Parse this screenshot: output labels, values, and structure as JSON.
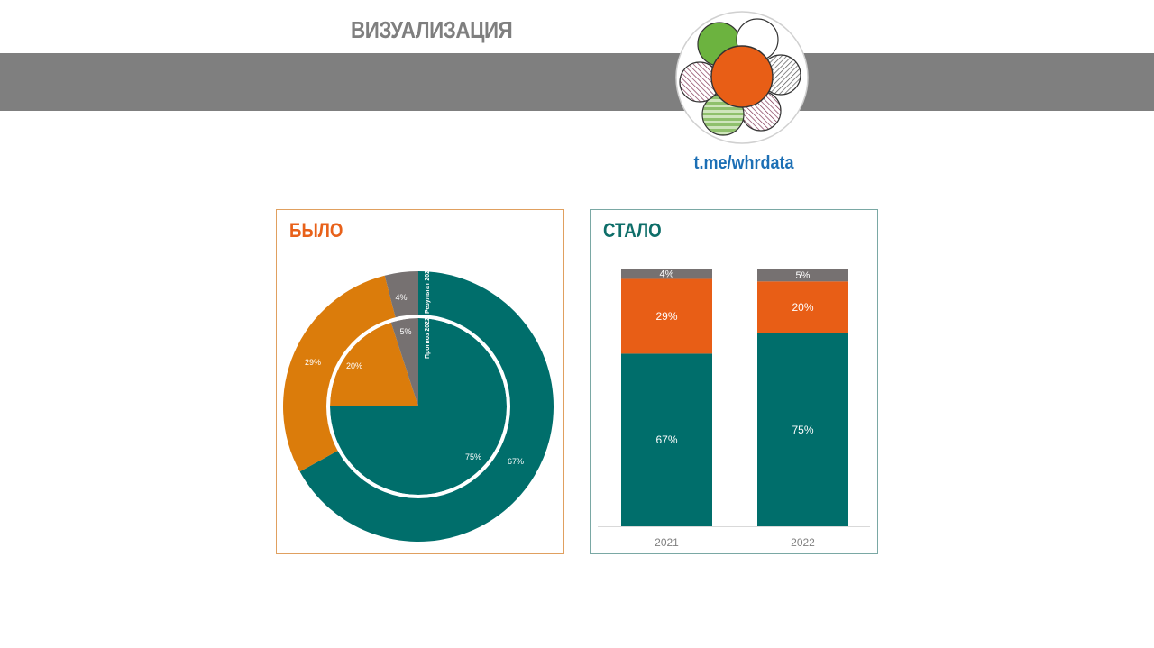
{
  "header": {
    "title": "ВИЗУАЛИЗАЦИЯ",
    "link": "t.me/whrdata"
  },
  "colors": {
    "main": "#006e6b",
    "orange_before": "#db7c0b",
    "orange_after": "#e85e16",
    "gray": "#767171",
    "band": "#7f7f7f",
    "link": "#1c6fb5"
  },
  "panels": {
    "before_title": "БЫЛО",
    "after_title": "СТАЛО"
  },
  "chart_data": [
    {
      "type": "pie",
      "variant": "nested-donut",
      "title": "БЫЛО",
      "rings": [
        {
          "name": "Результат 2021",
          "ring": "outer",
          "values": [
            67,
            29,
            4
          ],
          "labels": [
            "67%",
            "29%",
            "4%"
          ],
          "colors": [
            "#006e6b",
            "#db7c0b",
            "#767171"
          ]
        },
        {
          "name": "Прогноз 2022",
          "ring": "inner",
          "values": [
            75,
            20,
            5
          ],
          "labels": [
            "75%",
            "20%",
            "5%"
          ],
          "colors": [
            "#006e6b",
            "#db7c0b",
            "#767171"
          ]
        }
      ]
    },
    {
      "type": "bar",
      "variant": "stacked-100",
      "title": "СТАЛО",
      "categories": [
        "2021",
        "2022"
      ],
      "ylim": [
        0,
        100
      ],
      "series": [
        {
          "values": [
            67,
            75
          ],
          "labels": [
            "67%",
            "75%"
          ],
          "color": "#006e6b"
        },
        {
          "values": [
            29,
            20
          ],
          "labels": [
            "29%",
            "20%"
          ],
          "color": "#e85e16"
        },
        {
          "values": [
            4,
            5
          ],
          "labels": [
            "4%",
            "5%"
          ],
          "color": "#767171"
        }
      ]
    }
  ]
}
